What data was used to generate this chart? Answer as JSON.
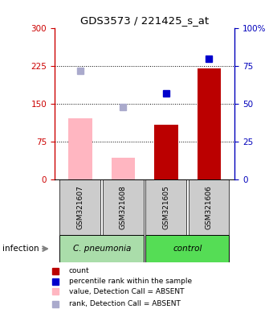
{
  "title": "GDS3573 / 221425_s_at",
  "samples": [
    "GSM321607",
    "GSM321608",
    "GSM321605",
    "GSM321606"
  ],
  "bar_values": [
    120,
    43,
    108,
    220
  ],
  "bar_absent": [
    true,
    true,
    false,
    false
  ],
  "rank_values": [
    215,
    143,
    170,
    238
  ],
  "rank_absent": [
    true,
    true,
    false,
    false
  ],
  "ylim_left": [
    0,
    300
  ],
  "ylim_right": [
    0,
    100
  ],
  "yticks_left": [
    0,
    75,
    150,
    225,
    300
  ],
  "ytick_labels_left": [
    "0",
    "75",
    "150",
    "225",
    "300"
  ],
  "yticks_right_vals": [
    0,
    25,
    50,
    75,
    100
  ],
  "ytick_labels_right": [
    "0",
    "25",
    "50",
    "75",
    "100%"
  ],
  "hlines": [
    75,
    150,
    225
  ],
  "bar_color_absent": "#FFB6C1",
  "bar_color_present": "#BB0000",
  "rank_color_absent": "#AAAACC",
  "rank_color_present": "#0000CC",
  "left_axis_color": "#CC0000",
  "right_axis_color": "#0000BB",
  "group1_label": "C. pneumonia",
  "group2_label": "control",
  "group1_color": "#AADDAA",
  "group2_color": "#55DD55",
  "sample_box_color": "#CCCCCC",
  "infection_label": "infection",
  "legend_labels": [
    "count",
    "percentile rank within the sample",
    "value, Detection Call = ABSENT",
    "rank, Detection Call = ABSENT"
  ],
  "bar_width": 0.55,
  "marker_size": 6
}
